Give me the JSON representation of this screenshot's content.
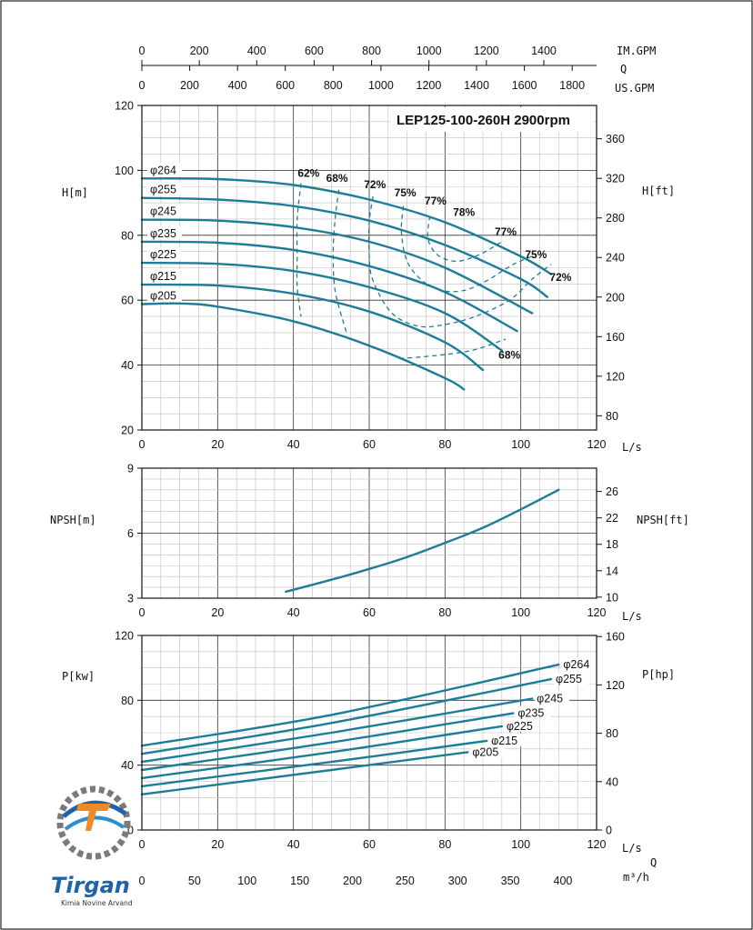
{
  "chart_data": [
    {
      "type": "line",
      "title": "LEP125-100-260H 2900rpm",
      "xlabel": "L/s",
      "ylabel": "H[m]",
      "ylabel_right": "H[ft]",
      "xlim": [
        0,
        120
      ],
      "ylim": [
        20,
        120
      ],
      "x_ticks": [
        "0",
        "20",
        "40",
        "60",
        "80",
        "100",
        "120"
      ],
      "y_ticks": [
        "20",
        "40",
        "60",
        "80",
        "100",
        "120"
      ],
      "y_right_ticks": [
        "80",
        "120",
        "160",
        "200",
        "240",
        "280",
        "320",
        "360"
      ],
      "grid": true,
      "series": [
        {
          "name": "φ264",
          "x": [
            0,
            20,
            40,
            60,
            80,
            100,
            108
          ],
          "y": [
            97.5,
            97.3,
            95.5,
            91.0,
            84.0,
            73.5,
            68.0
          ]
        },
        {
          "name": "φ255",
          "x": [
            0,
            20,
            40,
            60,
            80,
            100,
            107
          ],
          "y": [
            91.5,
            91.0,
            89.0,
            84.5,
            77.0,
            66.5,
            61.0
          ]
        },
        {
          "name": "φ245",
          "x": [
            0,
            20,
            40,
            60,
            80,
            103
          ],
          "y": [
            84.8,
            84.5,
            82.5,
            78.0,
            70.0,
            56.0
          ]
        },
        {
          "name": "φ235",
          "x": [
            0,
            20,
            40,
            60,
            80,
            99
          ],
          "y": [
            78.0,
            77.7,
            75.5,
            70.5,
            62.5,
            50.5
          ]
        },
        {
          "name": "φ225",
          "x": [
            0,
            20,
            40,
            60,
            80,
            95
          ],
          "y": [
            71.5,
            71.2,
            69.0,
            64.0,
            56.0,
            44.5
          ]
        },
        {
          "name": "φ215",
          "x": [
            0,
            20,
            40,
            60,
            80,
            90
          ],
          "y": [
            64.8,
            64.5,
            62.0,
            56.5,
            47.0,
            38.5
          ]
        },
        {
          "name": "φ205",
          "x": [
            0,
            10,
            20,
            40,
            60,
            80,
            85
          ],
          "y": [
            58.8,
            59.0,
            58.0,
            53.5,
            46.0,
            36.0,
            32.5
          ]
        }
      ],
      "efficiency_contours": [
        {
          "label": "62%",
          "points": [
            [
              42,
              96
            ],
            [
              41,
              85
            ],
            [
              41,
              74
            ],
            [
              41,
              64
            ],
            [
              42,
              55
            ]
          ]
        },
        {
          "label": "68%",
          "points": [
            [
              52,
              94
            ],
            [
              51,
              85
            ],
            [
              50.5,
              75
            ],
            [
              51,
              63
            ],
            [
              54,
              50
            ]
          ]
        },
        {
          "label": "72%",
          "points": [
            [
              61,
              92
            ],
            [
              60,
              84
            ],
            [
              60,
              74
            ],
            [
              61,
              66
            ],
            [
              66,
              56
            ],
            [
              73,
              52
            ],
            [
              80,
              52.5
            ],
            [
              88,
              55
            ],
            [
              97,
              60
            ],
            [
              103,
              66.5
            ],
            [
              108,
              71
            ]
          ]
        },
        {
          "label": "75%",
          "points": [
            [
              69,
              89
            ],
            [
              68.5,
              81
            ],
            [
              70,
              72
            ],
            [
              74,
              66
            ],
            [
              79,
              63
            ],
            [
              85,
              63
            ],
            [
              91,
              66
            ],
            [
              98,
              71
            ],
            [
              104,
              74
            ]
          ]
        },
        {
          "label": "77%",
          "points": [
            [
              76,
              86
            ],
            [
              75.5,
              79
            ],
            [
              78,
              74
            ],
            [
              83,
              72
            ],
            [
              89,
              74
            ],
            [
              95,
              78
            ]
          ]
        },
        {
          "label": "68%",
          "points": [
            [
              68,
              42
            ],
            [
              78,
              43
            ],
            [
              87,
              44.5
            ],
            [
              96,
              48
            ]
          ]
        }
      ],
      "efficiency_labels": [
        "62%",
        "68%",
        "72%",
        "75%",
        "77%",
        "78%",
        "77%",
        "75%",
        "72%",
        "68%"
      ],
      "top_axes": {
        "imp_gpm": {
          "label": "IM.GPM",
          "ticks": [
            "0",
            "200",
            "400",
            "600",
            "800",
            "1000",
            "1200",
            "1400"
          ]
        },
        "flow_symbol": "Q",
        "us_gpm": {
          "label": "US.GPM",
          "ticks": [
            "0",
            "200",
            "400",
            "600",
            "800",
            "1000",
            "1200",
            "1400",
            "1600",
            "1800"
          ]
        }
      }
    },
    {
      "type": "line",
      "xlabel": "L/s",
      "ylabel": "NPSH[m]",
      "ylabel_right": "NPSH[ft]",
      "xlim": [
        0,
        120
      ],
      "ylim": [
        3,
        9
      ],
      "x_ticks": [
        "0",
        "20",
        "40",
        "60",
        "80",
        "100",
        "120"
      ],
      "y_ticks": [
        "3",
        "6",
        "9"
      ],
      "y_right_ticks": [
        "10",
        "14",
        "18",
        "22",
        "26"
      ],
      "grid": true,
      "series": [
        {
          "x": [
            38,
            50,
            60,
            70,
            80,
            90,
            100,
            110
          ],
          "y": [
            3.3,
            3.85,
            4.35,
            4.9,
            5.55,
            6.25,
            7.1,
            8.0
          ]
        }
      ]
    },
    {
      "type": "line",
      "xlabel": "L/s",
      "ylabel": "P[kw]",
      "ylabel_right": "P[hp]",
      "xlim": [
        0,
        120
      ],
      "ylim": [
        0,
        120
      ],
      "x_ticks": [
        "0",
        "20",
        "40",
        "60",
        "80",
        "100",
        "120"
      ],
      "y_ticks": [
        "0",
        "40",
        "80",
        "120"
      ],
      "y_right_ticks": [
        "0",
        "40",
        "80",
        "120",
        "160"
      ],
      "grid": true,
      "series": [
        {
          "name": "φ264",
          "x": [
            0,
            50,
            110
          ],
          "y": [
            52,
            71,
            102
          ]
        },
        {
          "name": "φ255",
          "x": [
            0,
            50,
            108
          ],
          "y": [
            47,
            66,
            93
          ]
        },
        {
          "name": "φ245",
          "x": [
            0,
            50,
            103
          ],
          "y": [
            42,
            60,
            81
          ]
        },
        {
          "name": "φ235",
          "x": [
            0,
            50,
            98
          ],
          "y": [
            37,
            54,
            72
          ]
        },
        {
          "name": "φ225",
          "x": [
            0,
            50,
            95
          ],
          "y": [
            32,
            48,
            64
          ]
        },
        {
          "name": "φ215",
          "x": [
            0,
            50,
            91
          ],
          "y": [
            27,
            42,
            55
          ]
        },
        {
          "name": "φ205",
          "x": [
            0,
            50,
            86
          ],
          "y": [
            22,
            37,
            48
          ]
        }
      ],
      "bottom_axis": {
        "label": "m³/h",
        "flow_symbol": "Q",
        "ticks": [
          "0",
          "50",
          "100",
          "150",
          "200",
          "250",
          "300",
          "350",
          "400"
        ]
      }
    }
  ],
  "logo": {
    "name": "Tirgan",
    "tagline": "Kimia Novine Arvand"
  },
  "colors": {
    "curve": "#1d7d98",
    "grid": "#333333",
    "logo_orange": "#f08a24",
    "logo_blue": "#1f64a8"
  }
}
